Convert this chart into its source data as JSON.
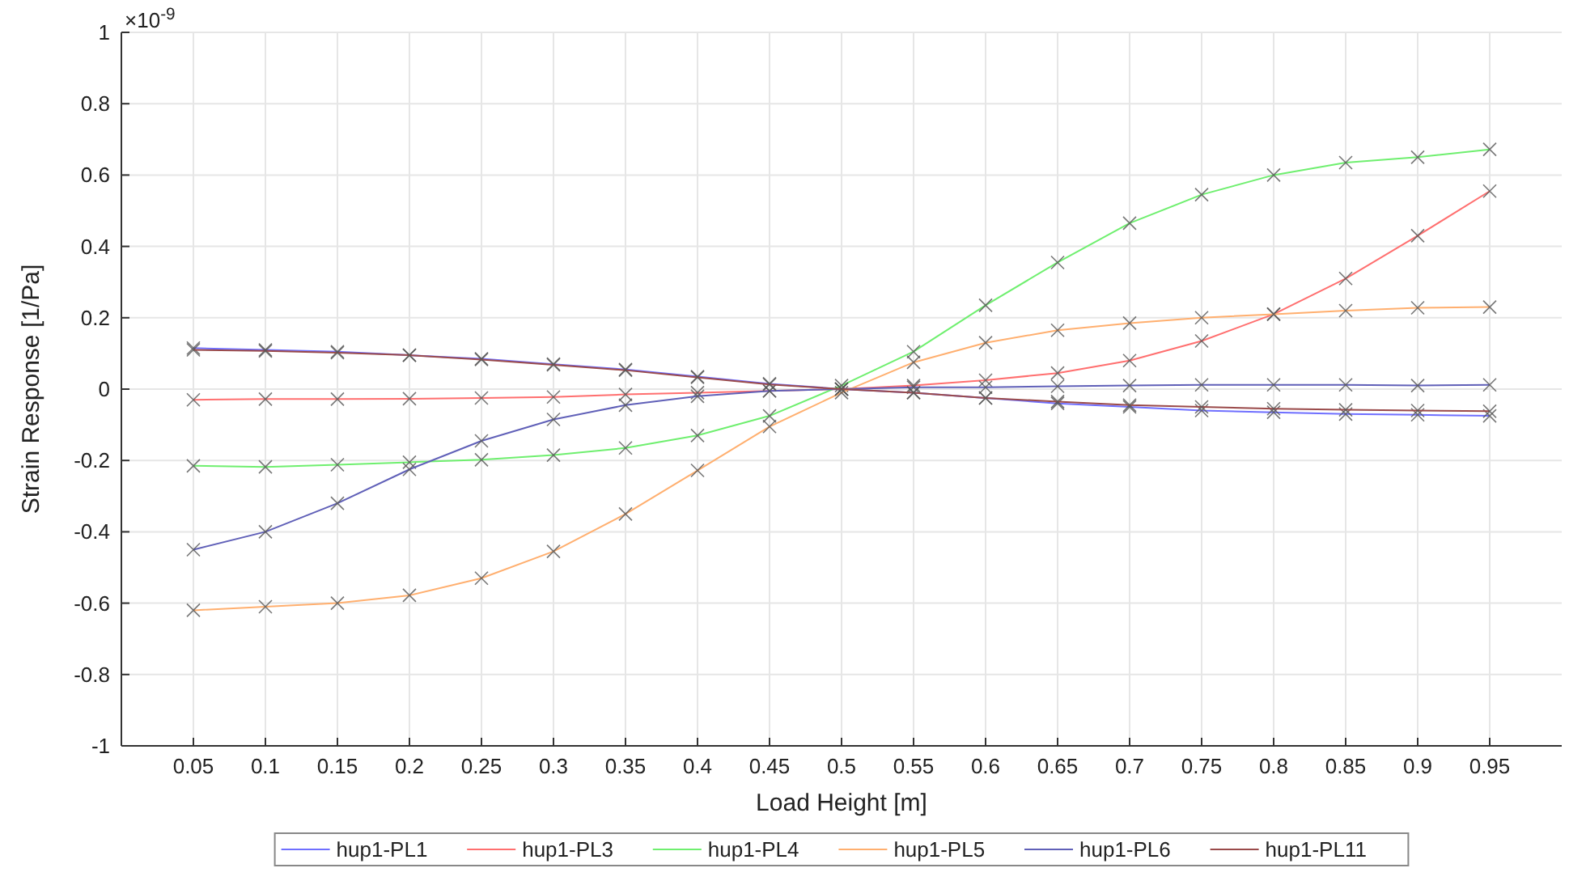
{
  "chart_data": {
    "type": "line",
    "xlabel": "Load Height [m]",
    "ylabel": "Strain Response [1/Pa]",
    "annotations": [
      "×10$^{-9}$"
    ],
    "x": [
      0.05,
      0.1,
      0.15,
      0.2,
      0.25,
      0.3,
      0.35,
      0.4,
      0.45,
      0.5,
      0.55,
      0.6,
      0.65,
      0.7,
      0.75,
      0.8,
      0.85,
      0.9,
      0.95
    ],
    "xlim": [
      0,
      1
    ],
    "xticks": [
      0.05,
      0.1,
      0.15,
      0.2,
      0.25,
      0.3,
      0.35,
      0.4,
      0.45,
      0.5,
      0.55,
      0.6,
      0.65,
      0.7,
      0.75,
      0.8,
      0.85,
      0.9,
      0.95
    ],
    "ylim": [
      -1,
      1
    ],
    "yticks": [
      -1,
      -0.8,
      -0.6,
      -0.4,
      -0.2,
      0,
      0.2,
      0.4,
      0.6,
      0.8,
      1
    ],
    "grid": true,
    "legend": "bottom",
    "marker": "cross",
    "line_style": "solid",
    "series": [
      {
        "name": "hup1-PL1",
        "color": "#6f6fff",
        "values": [
          0.115,
          0.11,
          0.105,
          0.095,
          0.085,
          0.07,
          0.055,
          0.035,
          0.015,
          0.0,
          -0.01,
          -0.025,
          -0.04,
          -0.05,
          -0.06,
          -0.065,
          -0.07,
          -0.072,
          -0.075
        ]
      },
      {
        "name": "hup1-PL3",
        "color": "#ff6f6f",
        "values": [
          -0.03,
          -0.028,
          -0.028,
          -0.027,
          -0.025,
          -0.022,
          -0.015,
          -0.01,
          -0.005,
          0.0,
          0.01,
          0.025,
          0.045,
          0.08,
          0.135,
          0.21,
          0.31,
          0.43,
          0.555
        ]
      },
      {
        "name": "hup1-PL4",
        "color": "#6fef6f",
        "values": [
          -0.215,
          -0.218,
          -0.212,
          -0.205,
          -0.198,
          -0.185,
          -0.165,
          -0.13,
          -0.075,
          0.01,
          0.105,
          0.235,
          0.355,
          0.465,
          0.545,
          0.6,
          0.635,
          0.65,
          0.672
        ]
      },
      {
        "name": "hup1-PL5",
        "color": "#ffaf6f",
        "values": [
          -0.62,
          -0.61,
          -0.6,
          -0.578,
          -0.53,
          -0.455,
          -0.35,
          -0.228,
          -0.105,
          -0.01,
          0.075,
          0.13,
          0.165,
          0.185,
          0.2,
          0.21,
          0.22,
          0.228,
          0.23
        ]
      },
      {
        "name": "hup1-PL6",
        "color": "#6060b8",
        "values": [
          -0.45,
          -0.4,
          -0.32,
          -0.225,
          -0.145,
          -0.085,
          -0.045,
          -0.02,
          -0.005,
          0.0,
          0.005,
          0.005,
          0.008,
          0.01,
          0.012,
          0.012,
          0.012,
          0.01,
          0.012
        ]
      },
      {
        "name": "hup1-PL11",
        "color": "#9a4a4a",
        "values": [
          0.11,
          0.107,
          0.102,
          0.095,
          0.083,
          0.068,
          0.053,
          0.033,
          0.013,
          0.0,
          -0.01,
          -0.025,
          -0.035,
          -0.045,
          -0.05,
          -0.055,
          -0.058,
          -0.06,
          -0.062
        ]
      }
    ]
  }
}
